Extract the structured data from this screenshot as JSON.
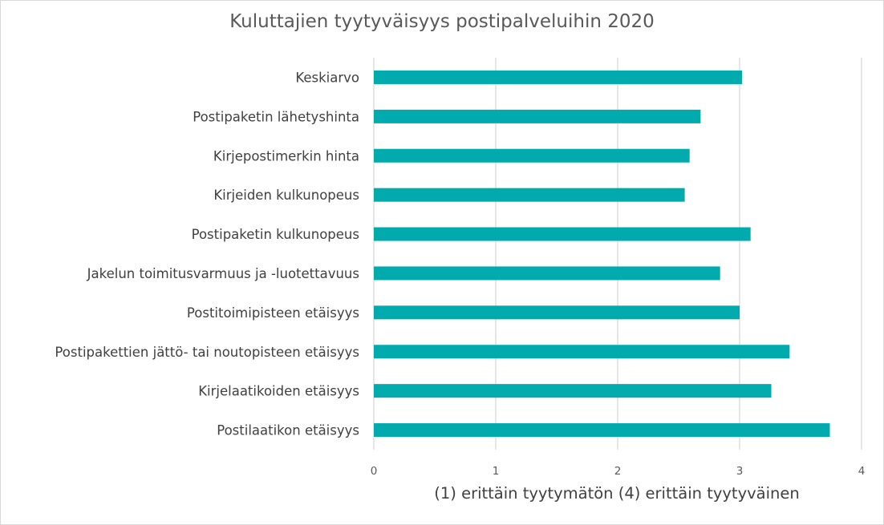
{
  "chart_data": {
    "type": "bar",
    "orientation": "horizontal",
    "title": "Kuluttajien tyytyväisyys postipalveluihin 2020",
    "xlabel": "(1) erittäin tyytymätön (4) erittäin tyytyväinen",
    "ylabel": "",
    "xlim": [
      0,
      4
    ],
    "xticks": [
      "0",
      "1",
      "2",
      "3",
      "4"
    ],
    "grid": true,
    "bar_color": "#00aaad",
    "categories": [
      "Keskiarvo",
      "Postipaketin lähetyshinta",
      "Kirjepostimerkin hinta",
      "Kirjeiden kulkunopeus",
      "Postipaketin kulkunopeus",
      "Jakelun toimitusvarmuus ja -luotettavuus",
      "Postitoimipisteen etäisyys",
      "Postipakettien jättö- tai noutopisteen etäisyys",
      "Kirjelaatikoiden etäisyys",
      "Postilaatikon etäisyys"
    ],
    "values": [
      3.02,
      2.68,
      2.59,
      2.55,
      3.09,
      2.84,
      3.0,
      3.41,
      3.26,
      3.74
    ]
  }
}
